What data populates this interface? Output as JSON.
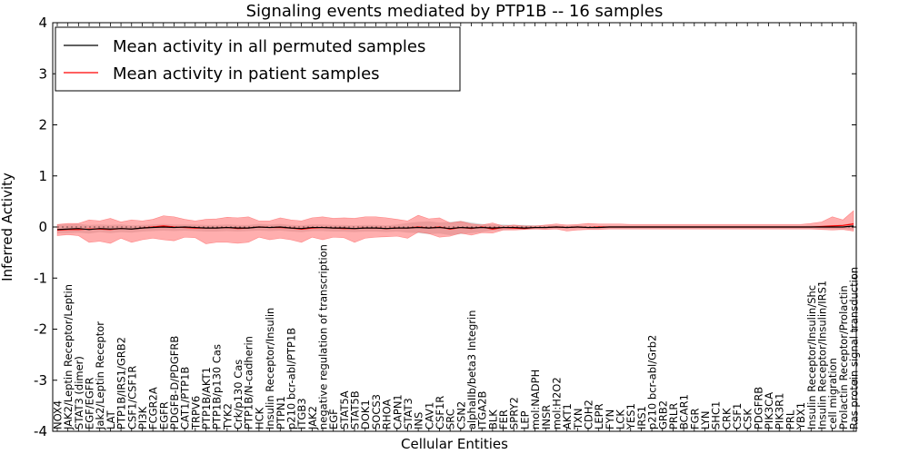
{
  "chart_data": {
    "type": "line",
    "title": "Signaling events mediated by PTP1B -- 16 samples",
    "xlabel": "Cellular Entities",
    "ylabel": "Inferred Activity",
    "ylim": [
      -4,
      4
    ],
    "yticks": [
      -4,
      -3,
      -2,
      -1,
      0,
      1,
      2,
      3,
      4
    ],
    "grid": false,
    "legend_position": "top-left",
    "colors": {
      "permuted_line": "#000000",
      "permuted_band": "#c8c8c8",
      "patient_line": "#ff0000",
      "patient_band": "#ff6b6b"
    },
    "categories": [
      "NOX4",
      "JAK2/Leptin Receptor/Leptin",
      "STAT3 (dimer)",
      "EGF/EGFR",
      "Jak2/Leptin Receptor",
      "LAT",
      "PTP1B/IRS1/GRB2",
      "CSF1/CSF1R",
      "PI3K",
      "FCGR2A",
      "EGFR",
      "PDGFB-D/PDGFRB",
      "CAT1/PTP1B",
      "TRPV6",
      "PTP1B/AKT1",
      "PTP1B/p130 Cas",
      "TYK2",
      "Crk/p130 Cas",
      "PTP1B/N-cadherin",
      "HCK",
      "Insulin Receptor/Insulin",
      "PTPN1",
      "p210 bcr-abl/PTP1B",
      "ITGB3",
      "JAK2",
      "negative regulation of transcription",
      "EGF",
      "STAT5A",
      "STAT5B",
      "DOK1",
      "SOCS3",
      "RHOA",
      "CAPN1",
      "STAT3",
      "INS",
      "CAV1",
      "CSF1R",
      "SRC",
      "CSN2",
      "alphaIIb/beta3 Integrin",
      "ITGA2B",
      "BLK",
      "FER",
      "SPRY2",
      "LEP",
      "mol:NADPH",
      "INSR",
      "mol:H2O2",
      "AKT1",
      "TXN",
      "CDH2",
      "LEPR",
      "FYN",
      "LCK",
      "YES1",
      "IRS1",
      "p210 bcr-abl/Grb2",
      "GRB2",
      "PRLR",
      "BCAR1",
      "FGR",
      "LYN",
      "SHC1",
      "CRK",
      "CSF1",
      "CSK",
      "PDGFRB",
      "PIK3CA",
      "PIK3R1",
      "PRL",
      "YBX1",
      "Insulin Receptor/Insulin/Shc",
      "Insulin Receptor/Insulin/IRS1",
      "cell migration",
      "Prolactin Receptor/Prolactin",
      "Ras protein signal transduction"
    ],
    "series": [
      {
        "name": "Mean activity in all permuted samples",
        "values": [
          -0.05,
          -0.04,
          -0.03,
          -0.05,
          -0.03,
          -0.04,
          -0.03,
          -0.04,
          -0.02,
          -0.01,
          0.0,
          -0.01,
          0.0,
          -0.01,
          -0.02,
          -0.02,
          -0.01,
          -0.02,
          -0.02,
          0.0,
          -0.01,
          0.0,
          -0.02,
          -0.03,
          -0.01,
          -0.01,
          -0.02,
          -0.02,
          -0.03,
          -0.02,
          -0.02,
          -0.03,
          -0.02,
          -0.02,
          -0.01,
          -0.02,
          -0.01,
          -0.03,
          -0.01,
          -0.02,
          -0.01,
          -0.02,
          -0.01,
          -0.01,
          -0.02,
          -0.01,
          -0.01,
          0.0,
          -0.01,
          0.0,
          -0.01,
          -0.01,
          0.0,
          0.0,
          0.0,
          0.0,
          0.0,
          0.0,
          0.0,
          0.0,
          0.0,
          0.0,
          0.0,
          0.0,
          0.0,
          0.0,
          0.0,
          0.0,
          0.0,
          0.0,
          0.0,
          0.0,
          0.0,
          0.0,
          0.0,
          0.02
        ],
        "band_upper": [
          0.05,
          0.05,
          0.06,
          0.04,
          0.05,
          0.04,
          0.05,
          0.03,
          0.04,
          0.05,
          0.06,
          0.05,
          0.05,
          0.05,
          0.04,
          0.04,
          0.05,
          0.04,
          0.04,
          0.06,
          0.05,
          0.06,
          0.04,
          0.03,
          0.05,
          0.05,
          0.04,
          0.04,
          0.03,
          0.04,
          0.04,
          0.03,
          0.05,
          0.08,
          0.1,
          0.11,
          0.09,
          0.1,
          0.12,
          0.09,
          0.06,
          0.05,
          0.05,
          0.04,
          0.04,
          0.03,
          0.03,
          0.03,
          0.02,
          0.03,
          0.02,
          0.02,
          0.02,
          0.02,
          0.02,
          0.02,
          0.02,
          0.02,
          0.02,
          0.02,
          0.02,
          0.02,
          0.02,
          0.02,
          0.02,
          0.02,
          0.02,
          0.02,
          0.02,
          0.02,
          0.02,
          0.03,
          0.03,
          0.04,
          0.05,
          0.08
        ],
        "band_lower": [
          -0.12,
          -0.12,
          -0.11,
          -0.13,
          -0.1,
          -0.12,
          -0.1,
          -0.11,
          -0.09,
          -0.08,
          -0.07,
          -0.08,
          -0.07,
          -0.08,
          -0.09,
          -0.09,
          -0.08,
          -0.09,
          -0.08,
          -0.07,
          -0.08,
          -0.07,
          -0.09,
          -0.1,
          -0.08,
          -0.08,
          -0.09,
          -0.09,
          -0.1,
          -0.09,
          -0.09,
          -0.1,
          -0.09,
          -0.11,
          -0.12,
          -0.14,
          -0.13,
          -0.16,
          -0.14,
          -0.12,
          -0.1,
          -0.07,
          -0.06,
          -0.05,
          -0.05,
          -0.04,
          -0.04,
          -0.03,
          -0.03,
          -0.03,
          -0.03,
          -0.03,
          -0.03,
          -0.03,
          -0.03,
          -0.03,
          -0.03,
          -0.03,
          -0.03,
          -0.03,
          -0.03,
          -0.03,
          -0.03,
          -0.03,
          -0.03,
          -0.03,
          -0.03,
          -0.03,
          -0.03,
          -0.03,
          -0.03,
          -0.03,
          -0.03,
          -0.04,
          -0.04,
          -0.05
        ]
      },
      {
        "name": "Mean activity in patient samples",
        "values": [
          -0.06,
          -0.05,
          -0.05,
          -0.04,
          -0.04,
          -0.05,
          -0.03,
          -0.04,
          -0.02,
          0.0,
          0.02,
          0.0,
          -0.01,
          -0.02,
          -0.02,
          -0.02,
          -0.01,
          -0.03,
          -0.02,
          0.0,
          -0.01,
          -0.01,
          -0.02,
          -0.04,
          -0.02,
          -0.01,
          -0.02,
          -0.03,
          -0.03,
          -0.02,
          -0.02,
          -0.03,
          -0.02,
          -0.02,
          0.0,
          -0.02,
          0.0,
          -0.04,
          -0.01,
          -0.03,
          0.0,
          -0.04,
          -0.01,
          -0.02,
          -0.03,
          -0.01,
          -0.01,
          0.0,
          -0.01,
          0.0,
          -0.01,
          0.0,
          0.0,
          0.0,
          0.0,
          0.0,
          0.0,
          0.0,
          0.0,
          0.0,
          0.0,
          0.0,
          0.0,
          0.0,
          0.0,
          0.0,
          0.0,
          0.0,
          0.0,
          0.0,
          0.0,
          0.0,
          0.01,
          0.02,
          0.03,
          0.06
        ],
        "band_upper": [
          0.05,
          0.07,
          0.07,
          0.14,
          0.12,
          0.17,
          0.1,
          0.14,
          0.12,
          0.15,
          0.22,
          0.2,
          0.15,
          0.12,
          0.15,
          0.16,
          0.19,
          0.18,
          0.2,
          0.12,
          0.12,
          0.18,
          0.14,
          0.12,
          0.18,
          0.2,
          0.17,
          0.18,
          0.17,
          0.2,
          0.2,
          0.18,
          0.15,
          0.12,
          0.23,
          0.16,
          0.18,
          0.08,
          0.11,
          0.06,
          0.04,
          0.08,
          0.02,
          0.04,
          0.02,
          0.02,
          0.04,
          0.06,
          0.04,
          0.05,
          0.07,
          0.06,
          0.06,
          0.06,
          0.05,
          0.05,
          0.05,
          0.05,
          0.05,
          0.05,
          0.05,
          0.05,
          0.05,
          0.05,
          0.05,
          0.05,
          0.05,
          0.05,
          0.05,
          0.05,
          0.05,
          0.07,
          0.1,
          0.2,
          0.14,
          0.32
        ],
        "band_lower": [
          -0.17,
          -0.15,
          -0.17,
          -0.3,
          -0.28,
          -0.32,
          -0.22,
          -0.3,
          -0.25,
          -0.22,
          -0.25,
          -0.27,
          -0.2,
          -0.21,
          -0.33,
          -0.3,
          -0.3,
          -0.32,
          -0.3,
          -0.2,
          -0.25,
          -0.22,
          -0.25,
          -0.3,
          -0.2,
          -0.25,
          -0.2,
          -0.21,
          -0.3,
          -0.22,
          -0.2,
          -0.19,
          -0.18,
          -0.22,
          -0.1,
          -0.13,
          -0.2,
          -0.18,
          -0.12,
          -0.16,
          -0.11,
          -0.12,
          -0.06,
          -0.06,
          -0.05,
          -0.04,
          -0.05,
          -0.04,
          -0.08,
          -0.06,
          -0.05,
          -0.05,
          -0.04,
          -0.04,
          -0.04,
          -0.04,
          -0.04,
          -0.04,
          -0.04,
          -0.04,
          -0.04,
          -0.04,
          -0.04,
          -0.04,
          -0.04,
          -0.04,
          -0.04,
          -0.04,
          -0.04,
          -0.04,
          -0.04,
          -0.04,
          -0.05,
          -0.06,
          -0.05,
          -0.08
        ]
      }
    ]
  }
}
